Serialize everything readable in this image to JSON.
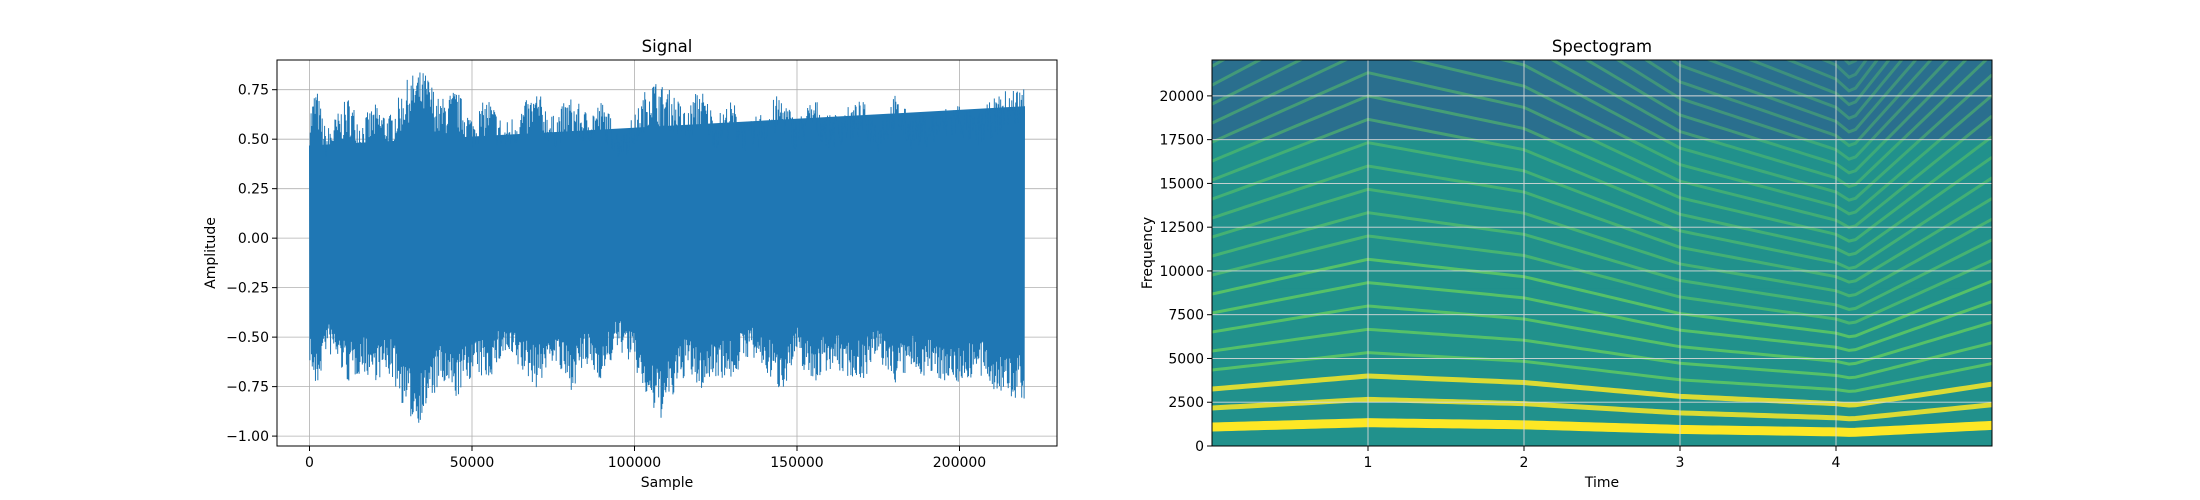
{
  "chart_data": [
    {
      "type": "line",
      "title": "Signal",
      "xlabel": "Sample",
      "ylabel": "Amplitude",
      "xlim": [
        -10000,
        230000
      ],
      "ylim": [
        -1.05,
        0.9
      ],
      "grid": true,
      "x_ticks": [
        0,
        50000,
        100000,
        150000,
        200000
      ],
      "x_tick_labels": [
        "0",
        "50000",
        "100000",
        "150000",
        "200000"
      ],
      "y_ticks": [
        -1.0,
        -0.75,
        -0.5,
        -0.25,
        0.0,
        0.25,
        0.5,
        0.75
      ],
      "y_tick_labels": [
        "−1.00",
        "−0.75",
        "−0.50",
        "−0.25",
        "0.00",
        "0.25",
        "0.50",
        "0.75"
      ],
      "series_color": "#1f77b4",
      "envelope": {
        "x": [
          0,
          2000,
          5000,
          8000,
          12000,
          16000,
          20000,
          25000,
          30000,
          33000,
          36000,
          40000,
          45000,
          50000,
          55000,
          60000,
          65000,
          70000,
          75000,
          80000,
          85000,
          90000,
          95000,
          100000,
          105000,
          108000,
          112000,
          116000,
          120000,
          125000,
          130000,
          135000,
          140000,
          145000,
          150000,
          155000,
          160000,
          165000,
          170000,
          175000,
          180000,
          185000,
          190000,
          195000,
          200000,
          205000,
          210000,
          215000,
          220000
        ],
        "upper": [
          0.65,
          0.78,
          0.55,
          0.62,
          0.72,
          0.6,
          0.68,
          0.63,
          0.8,
          0.85,
          0.84,
          0.7,
          0.76,
          0.62,
          0.72,
          0.58,
          0.67,
          0.75,
          0.62,
          0.72,
          0.65,
          0.7,
          0.55,
          0.62,
          0.82,
          0.78,
          0.74,
          0.64,
          0.78,
          0.62,
          0.7,
          0.58,
          0.66,
          0.74,
          0.6,
          0.72,
          0.62,
          0.66,
          0.7,
          0.6,
          0.73,
          0.62,
          0.64,
          0.66,
          0.7,
          0.62,
          0.7,
          0.76,
          0.78
        ],
        "lower": [
          -0.62,
          -0.8,
          -0.58,
          -0.62,
          -0.74,
          -0.68,
          -0.72,
          -0.7,
          -0.9,
          -0.95,
          -0.88,
          -0.75,
          -0.82,
          -0.7,
          -0.72,
          -0.6,
          -0.68,
          -0.76,
          -0.62,
          -0.78,
          -0.66,
          -0.72,
          -0.56,
          -0.66,
          -0.88,
          -0.92,
          -0.82,
          -0.68,
          -0.78,
          -0.7,
          -0.72,
          -0.6,
          -0.68,
          -0.78,
          -0.62,
          -0.74,
          -0.66,
          -0.7,
          -0.72,
          -0.62,
          -0.74,
          -0.68,
          -0.7,
          -0.72,
          -0.74,
          -0.7,
          -0.76,
          -0.82,
          -0.82
        ]
      }
    },
    {
      "type": "heatmap",
      "title": "Spectogram",
      "xlabel": "Time",
      "ylabel": "Frequency",
      "xlim": [
        0,
        5.0
      ],
      "ylim": [
        0,
        22050
      ],
      "grid": true,
      "x_ticks": [
        1,
        2,
        3,
        4
      ],
      "x_tick_labels": [
        "1",
        "2",
        "3",
        "4"
      ],
      "y_ticks": [
        0,
        2500,
        5000,
        7500,
        10000,
        12500,
        15000,
        17500,
        20000
      ],
      "y_tick_labels": [
        "0",
        "2500",
        "5000",
        "7500",
        "10000",
        "12500",
        "15000",
        "17500",
        "20000"
      ],
      "colormap": [
        "#440154",
        "#3b528b",
        "#21918c",
        "#5ec962",
        "#fde725"
      ],
      "background_color": "#2a6f8e",
      "cutoff_frequency": 17500,
      "fundamental_contour": {
        "t": [
          0.0,
          1.0,
          2.0,
          3.0,
          4.0,
          4.1,
          5.0
        ],
        "f0": [
          700,
          860,
          780,
          610,
          520,
          500,
          760
        ]
      }
    }
  ]
}
